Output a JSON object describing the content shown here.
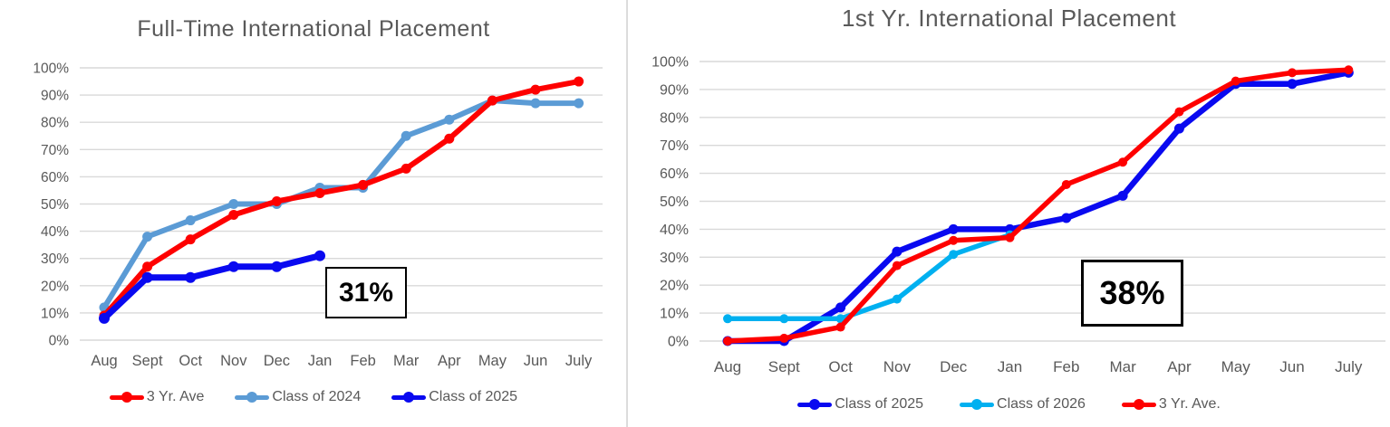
{
  "charts": [
    {
      "title": "Full-Time International Placement",
      "annotation": {
        "text": "31%"
      },
      "chart_data": {
        "type": "line",
        "categories": [
          "Aug",
          "Sept",
          "Oct",
          "Nov",
          "Dec",
          "Jan",
          "Feb",
          "Mar",
          "Apr",
          "May",
          "Jun",
          "July"
        ],
        "yticks": [
          "0%",
          "10%",
          "20%",
          "30%",
          "40%",
          "50%",
          "60%",
          "70%",
          "80%",
          "90%",
          "100%"
        ],
        "ylim": [
          0,
          100
        ],
        "grid": true,
        "legend_position": "bottom",
        "series": [
          {
            "name": "3 Yr. Ave",
            "color": "#fe0000",
            "values": [
              9,
              27,
              37,
              46,
              51,
              54,
              57,
              63,
              74,
              88,
              92,
              95
            ]
          },
          {
            "name": "Class of 2024",
            "color": "#5b9bd5",
            "values": [
              12,
              38,
              44,
              50,
              50,
              56,
              56,
              75,
              81,
              88,
              87,
              87
            ]
          },
          {
            "name": "Class of 2025",
            "color": "#0909f0",
            "values": [
              8,
              23,
              23,
              27,
              27,
              31,
              null,
              null,
              null,
              null,
              null,
              null
            ]
          }
        ]
      }
    },
    {
      "title": "1st Yr. International Placement",
      "annotation": {
        "text": "38%"
      },
      "chart_data": {
        "type": "line",
        "categories": [
          "Aug",
          "Sept",
          "Oct",
          "Nov",
          "Dec",
          "Jan",
          "Feb",
          "Mar",
          "Apr",
          "May",
          "Jun",
          "July"
        ],
        "yticks": [
          "0%",
          "10%",
          "20%",
          "30%",
          "40%",
          "50%",
          "60%",
          "70%",
          "80%",
          "90%",
          "100%"
        ],
        "ylim": [
          0,
          100
        ],
        "grid": true,
        "legend_position": "bottom",
        "series": [
          {
            "name": "Class of 2025",
            "color": "#0909f0",
            "values": [
              0,
              0,
              12,
              32,
              40,
              40,
              44,
              52,
              76,
              92,
              92,
              96
            ]
          },
          {
            "name": "Class of 2026",
            "color": "#00b0f0",
            "values": [
              8,
              8,
              8,
              15,
              31,
              38,
              null,
              null,
              null,
              null,
              null,
              null
            ]
          },
          {
            "name": "3 Yr. Ave.",
            "color": "#fe0000",
            "values": [
              0,
              1,
              5,
              27,
              36,
              37,
              56,
              64,
              82,
              93,
              96,
              97
            ]
          }
        ]
      }
    }
  ],
  "style_colors": {
    "gridline": "#d9d9d9",
    "axis_text": "#595959",
    "title_text": "#595959"
  }
}
